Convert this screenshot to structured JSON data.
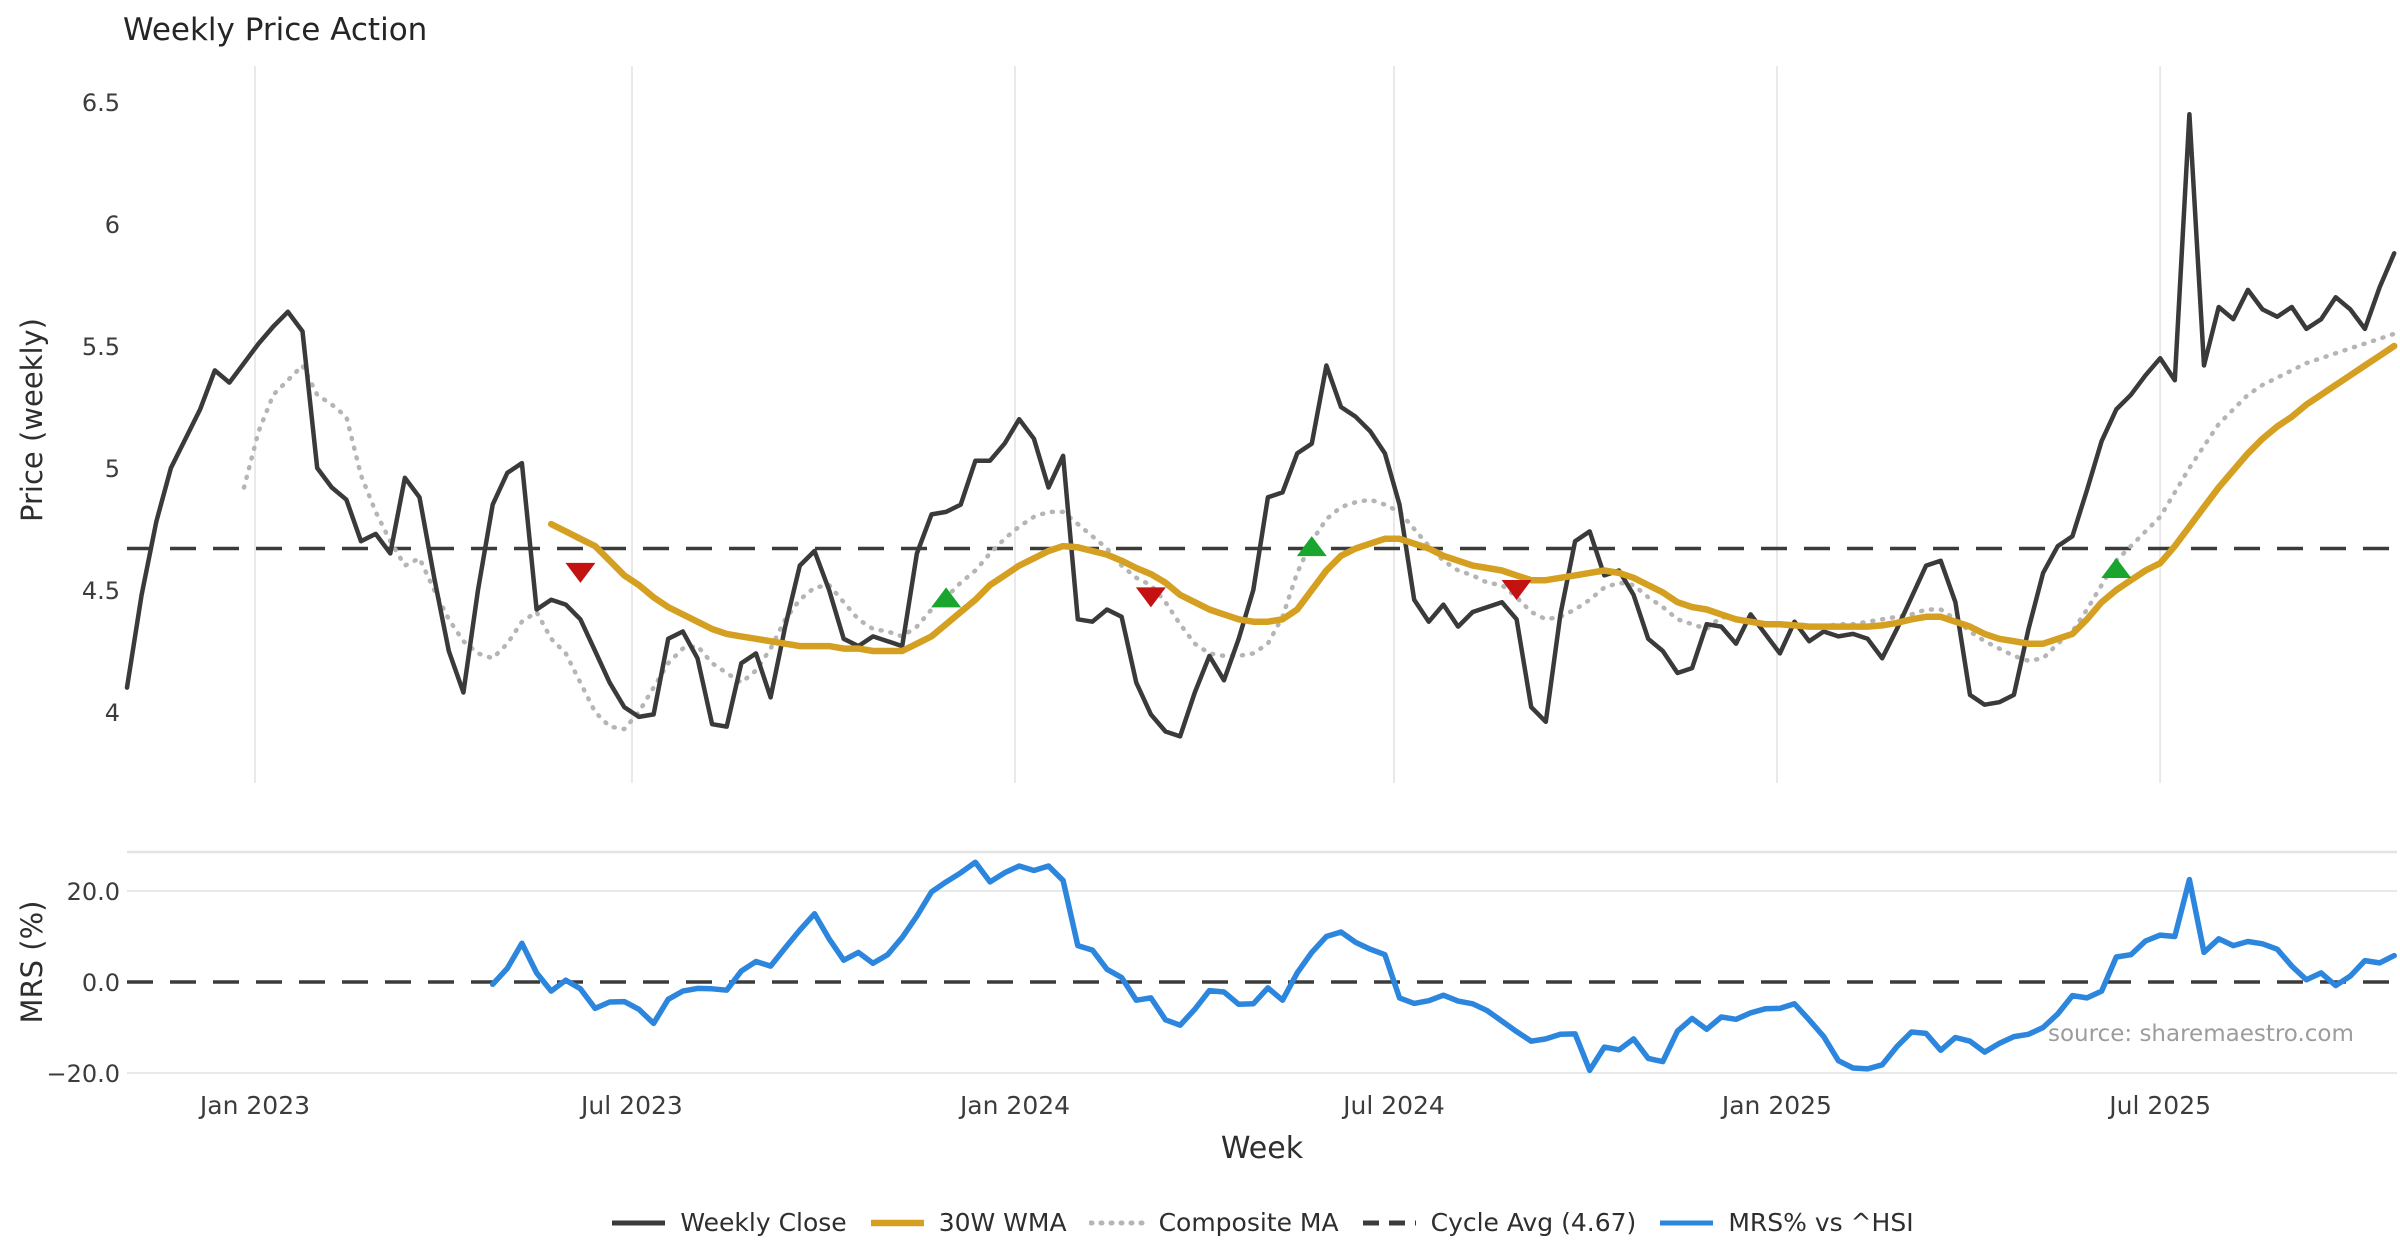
{
  "title": "Weekly Price Action",
  "watermark": "source: sharemaestro.com",
  "axes": {
    "x": {
      "label": "Week",
      "ticks": [
        {
          "week": 8.75,
          "label": "Jan 2023"
        },
        {
          "week": 34.52,
          "label": "Jul 2023"
        },
        {
          "week": 60.71,
          "label": "Jan 2024"
        },
        {
          "week": 86.62,
          "label": "Jul 2024"
        },
        {
          "week": 112.8,
          "label": "Jan 2025"
        },
        {
          "week": 139.0,
          "label": "Jul 2025"
        }
      ]
    },
    "price": {
      "label": "Price (weekly)",
      "tick_values": [
        4,
        4.5,
        5,
        5.5,
        6,
        6.5
      ],
      "tick_labels": [
        "4",
        "4.5",
        "5",
        "5.5",
        "6",
        "6.5"
      ]
    },
    "mrs": {
      "label": "MRS (%)",
      "tick_values": [
        -20,
        0,
        20
      ],
      "tick_labels": [
        "−20.0",
        "0.0",
        "20.0"
      ]
    }
  },
  "legend": [
    {
      "label": "Weekly Close",
      "color": "#3a3a3a",
      "style": "solid"
    },
    {
      "label": "30W WMA",
      "color": "#d5a021",
      "style": "solid"
    },
    {
      "label": "Composite MA",
      "color": "#b5b5b5",
      "style": "dotted"
    },
    {
      "label": "Cycle Avg (4.67)",
      "color": "#3b3b3b",
      "style": "dashed"
    },
    {
      "label": "MRS% vs ^HSI",
      "color": "#2d86dd",
      "style": "solid"
    }
  ],
  "colors": {
    "weekly_close": "#3a3a3a",
    "wma": "#d5a021",
    "composite": "#b5b5b5",
    "cycle_avg": "#3b3b3b",
    "mrs": "#2d86dd",
    "marker_up": "#19a52e",
    "marker_down": "#c41212",
    "grid": "#e9e9e9",
    "spine": "#e3e3e3",
    "tick_text": "#3c3c3c"
  },
  "chart_data": {
    "type": "line",
    "title": "Weekly Price Action",
    "xlabel": "Week",
    "x_unit": "week_index",
    "x_range_weeks": [
      0,
      155
    ],
    "x_tick_labels": [
      "Jan 2023",
      "Jul 2023",
      "Jan 2024",
      "Jul 2024",
      "Jan 2025",
      "Jul 2025"
    ],
    "grid": "vertical-lines-price-panel-only",
    "legend_position": "bottom-center",
    "cycle_avg": 4.67,
    "panels": [
      {
        "id": "price",
        "ylabel": "Price (weekly)",
        "ylim": [
          3.71,
          6.65
        ],
        "yticks": [
          4,
          4.5,
          5,
          5.5,
          6,
          6.5
        ]
      },
      {
        "id": "mrs",
        "ylabel": "MRS (%)",
        "ylim": [
          -22.6,
          28.6
        ],
        "yticks": [
          -20,
          0,
          20
        ]
      }
    ],
    "series": [
      {
        "name": "Weekly Close",
        "panel": "price",
        "style": "solid",
        "color": "#3a3a3a",
        "start_week": 0,
        "values": [
          4.1,
          4.48,
          4.78,
          5.0,
          5.12,
          5.24,
          5.4,
          5.35,
          5.43,
          5.51,
          5.58,
          5.64,
          5.56,
          5.0,
          4.92,
          4.87,
          4.7,
          4.73,
          4.65,
          4.96,
          4.88,
          4.55,
          4.25,
          4.08,
          4.5,
          4.85,
          4.98,
          5.02,
          4.42,
          4.46,
          4.44,
          4.38,
          4.25,
          4.12,
          4.02,
          3.98,
          3.99,
          4.3,
          4.33,
          4.22,
          3.95,
          3.94,
          4.2,
          4.24,
          4.06,
          4.35,
          4.6,
          4.66,
          4.5,
          4.3,
          4.27,
          4.31,
          4.29,
          4.27,
          4.65,
          4.81,
          4.82,
          4.85,
          5.03,
          5.03,
          5.1,
          5.2,
          5.12,
          4.92,
          5.05,
          4.38,
          4.37,
          4.42,
          4.39,
          4.12,
          3.99,
          3.92,
          3.9,
          4.08,
          4.23,
          4.13,
          4.3,
          4.5,
          4.88,
          4.9,
          5.06,
          5.1,
          5.42,
          5.25,
          5.21,
          5.15,
          5.06,
          4.85,
          4.46,
          4.37,
          4.44,
          4.35,
          4.41,
          4.43,
          4.45,
          4.38,
          4.02,
          3.96,
          4.4,
          4.7,
          4.74,
          4.56,
          4.58,
          4.48,
          4.3,
          4.25,
          4.16,
          4.18,
          4.36,
          4.35,
          4.28,
          4.4,
          4.32,
          4.24,
          4.37,
          4.29,
          4.33,
          4.31,
          4.32,
          4.3,
          4.22,
          4.34,
          4.47,
          4.6,
          4.62,
          4.45,
          4.07,
          4.03,
          4.04,
          4.07,
          4.34,
          4.57,
          4.68,
          4.72,
          4.91,
          5.11,
          5.24,
          5.3,
          5.38,
          5.45,
          5.36,
          6.45,
          5.42,
          5.66,
          5.61,
          5.73,
          5.65,
          5.62,
          5.66,
          5.57,
          5.61,
          5.7,
          5.65,
          5.57,
          5.74,
          5.88
        ]
      },
      {
        "name": "30W WMA",
        "panel": "price",
        "style": "solid",
        "color": "#d5a021",
        "start_week": 29,
        "values": [
          4.77,
          4.74,
          4.71,
          4.68,
          4.62,
          4.56,
          4.52,
          4.47,
          4.43,
          4.4,
          4.37,
          4.34,
          4.32,
          4.31,
          4.3,
          4.29,
          4.28,
          4.27,
          4.27,
          4.27,
          4.26,
          4.26,
          4.25,
          4.25,
          4.25,
          4.28,
          4.31,
          4.36,
          4.41,
          4.46,
          4.52,
          4.56,
          4.6,
          4.63,
          4.66,
          4.68,
          4.675,
          4.66,
          4.645,
          4.62,
          4.59,
          4.565,
          4.53,
          4.48,
          4.45,
          4.42,
          4.4,
          4.38,
          4.37,
          4.37,
          4.38,
          4.42,
          4.5,
          4.58,
          4.64,
          4.67,
          4.69,
          4.71,
          4.71,
          4.69,
          4.67,
          4.64,
          4.62,
          4.6,
          4.59,
          4.58,
          4.56,
          4.54,
          4.54,
          4.55,
          4.56,
          4.57,
          4.58,
          4.57,
          4.55,
          4.52,
          4.49,
          4.45,
          4.43,
          4.42,
          4.4,
          4.38,
          4.37,
          4.36,
          4.36,
          4.355,
          4.35,
          4.35,
          4.35,
          4.35,
          4.35,
          4.355,
          4.365,
          4.38,
          4.39,
          4.39,
          4.37,
          4.35,
          4.32,
          4.3,
          4.29,
          4.28,
          4.28,
          4.3,
          4.32,
          4.38,
          4.45,
          4.5,
          4.54,
          4.58,
          4.61,
          4.68,
          4.76,
          4.84,
          4.92,
          4.99,
          5.06,
          5.12,
          5.17,
          5.21,
          5.26,
          5.3,
          5.34,
          5.38,
          5.42,
          5.46,
          5.5
        ]
      },
      {
        "name": "Composite MA",
        "panel": "price",
        "style": "dotted",
        "color": "#b5b5b5",
        "start_week": 8,
        "values": [
          4.92,
          5.15,
          5.3,
          5.36,
          5.42,
          5.3,
          5.26,
          5.21,
          4.97,
          4.82,
          4.7,
          4.6,
          4.63,
          4.5,
          4.38,
          4.29,
          4.24,
          4.22,
          4.28,
          4.37,
          4.41,
          4.3,
          4.24,
          4.12,
          4.0,
          3.94,
          3.93,
          4.0,
          4.1,
          4.2,
          4.26,
          4.27,
          4.2,
          4.16,
          4.12,
          4.17,
          4.26,
          4.38,
          4.46,
          4.51,
          4.52,
          4.45,
          4.38,
          4.34,
          4.33,
          4.31,
          4.35,
          4.42,
          4.47,
          4.53,
          4.58,
          4.65,
          4.71,
          4.76,
          4.8,
          4.82,
          4.82,
          4.77,
          4.72,
          4.67,
          4.6,
          4.55,
          4.52,
          4.45,
          4.36,
          4.28,
          4.24,
          4.23,
          4.23,
          4.24,
          4.28,
          4.39,
          4.57,
          4.7,
          4.79,
          4.84,
          4.86,
          4.87,
          4.85,
          4.82,
          4.75,
          4.68,
          4.62,
          4.58,
          4.56,
          4.53,
          4.52,
          4.47,
          4.41,
          4.38,
          4.39,
          4.42,
          4.46,
          4.51,
          4.53,
          4.52,
          4.47,
          4.43,
          4.38,
          4.36,
          4.34,
          4.39,
          4.38,
          4.37,
          4.36,
          4.36,
          4.36,
          4.355,
          4.35,
          4.36,
          4.36,
          4.37,
          4.38,
          4.39,
          4.4,
          4.42,
          4.42,
          4.38,
          4.33,
          4.29,
          4.26,
          4.23,
          4.21,
          4.22,
          4.28,
          4.33,
          4.42,
          4.52,
          4.62,
          4.68,
          4.74,
          4.8,
          4.9,
          5.0,
          5.09,
          5.18,
          5.24,
          5.3,
          5.34,
          5.37,
          5.4,
          5.43,
          5.45,
          5.47,
          5.49,
          5.51,
          5.53,
          5.55
        ]
      },
      {
        "name": "Cycle Avg (4.67)",
        "panel": "price",
        "style": "dashed",
        "color": "#3b3b3b",
        "const": 4.67
      },
      {
        "name": "MRS% vs ^HSI",
        "panel": "mrs",
        "style": "solid",
        "color": "#2d86dd",
        "start_week": 25,
        "values": [
          -0.5,
          3.0,
          8.5,
          2.0,
          -2.0,
          0.4,
          -1.5,
          -5.8,
          -4.4,
          -4.3,
          -6.0,
          -9.1,
          -3.8,
          -2.0,
          -1.4,
          -1.5,
          -1.8,
          2.4,
          4.5,
          3.5,
          7.5,
          11.4,
          15.0,
          9.5,
          4.8,
          6.5,
          4.1,
          6.0,
          9.8,
          14.5,
          19.8,
          22.0,
          24.0,
          26.3,
          22.0,
          24.0,
          25.5,
          24.5,
          25.5,
          22.3,
          8.0,
          7.0,
          2.8,
          1.0,
          -4.0,
          -3.5,
          -8.3,
          -9.5,
          -6.0,
          -1.9,
          -2.2,
          -4.9,
          -4.8,
          -1.3,
          -4.0,
          2.0,
          6.5,
          10.0,
          11.0,
          8.7,
          7.2,
          6.0,
          -3.5,
          -4.7,
          -4.1,
          -2.9,
          -4.2,
          -4.8,
          -6.3,
          -8.6,
          -10.9,
          -13.0,
          -12.5,
          -11.5,
          -11.4,
          -19.4,
          -14.3,
          -14.9,
          -12.5,
          -16.8,
          -17.5,
          -10.8,
          -8.0,
          -10.4,
          -7.7,
          -8.2,
          -6.8,
          -5.9,
          -5.8,
          -4.8,
          -8.3,
          -12.0,
          -17.3,
          -18.9,
          -19.1,
          -18.2,
          -14.2,
          -11.0,
          -11.3,
          -15.0,
          -12.2,
          -13.0,
          -15.4,
          -13.5,
          -12.0,
          -11.5,
          -10.0,
          -7.0,
          -3.0,
          -3.5,
          -2.0,
          5.5,
          6.0,
          9.0,
          10.3,
          10.0,
          22.5,
          6.5,
          9.5,
          8.0,
          8.9,
          8.4,
          7.2,
          3.5,
          0.5,
          2.0,
          -0.8,
          1.3,
          4.7,
          4.2,
          5.8
        ]
      }
    ],
    "markers": [
      {
        "week": 31,
        "value": 4.57,
        "shape": "triangle-down",
        "signal": "down",
        "color": "#c41212"
      },
      {
        "week": 56,
        "value": 4.47,
        "shape": "triangle-up",
        "signal": "up",
        "color": "#19a52e"
      },
      {
        "week": 70,
        "value": 4.47,
        "shape": "triangle-down",
        "signal": "down",
        "color": "#c41212"
      },
      {
        "week": 81,
        "value": 4.68,
        "shape": "triangle-up",
        "signal": "up",
        "color": "#19a52e"
      },
      {
        "week": 95,
        "value": 4.5,
        "shape": "triangle-down",
        "signal": "down",
        "color": "#c41212"
      },
      {
        "week": 136,
        "value": 4.59,
        "shape": "triangle-up",
        "signal": "up",
        "color": "#19a52e"
      }
    ]
  }
}
